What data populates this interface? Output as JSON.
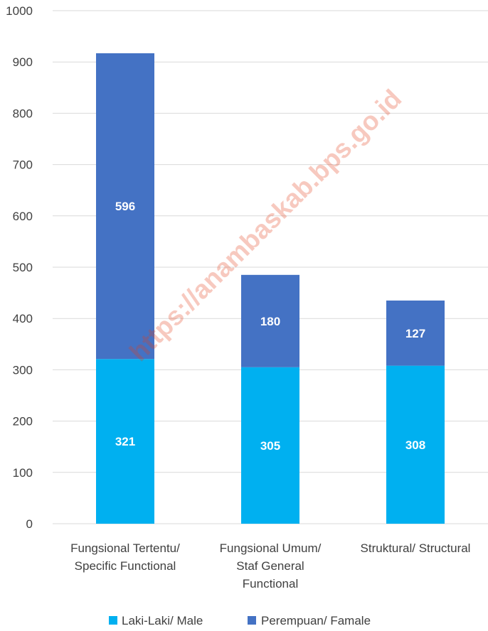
{
  "chart_data": {
    "type": "bar",
    "stacked": true,
    "categories": [
      [
        "Fungsional Tertentu/",
        "Specific Functional"
      ],
      [
        "Fungsional Umum/",
        "Staf General",
        "Functional"
      ],
      [
        "Struktural/ Structural"
      ]
    ],
    "series": [
      {
        "name": "Laki-Laki/ Male",
        "values": [
          321,
          305,
          308
        ],
        "color": "#00b0f0"
      },
      {
        "name": "Perempuan/ Famale",
        "values": [
          596,
          180,
          127
        ],
        "color": "#4472c4"
      }
    ],
    "ylim": [
      0,
      1000
    ],
    "yticks": [
      "0",
      "100",
      "200",
      "300",
      "400",
      "500",
      "600",
      "700",
      "800",
      "900",
      "1000"
    ],
    "grid": true,
    "legend_position": "bottom",
    "gridline_color": "#d9d9d9",
    "watermark": "https://anambaskab.bps.go.id"
  }
}
